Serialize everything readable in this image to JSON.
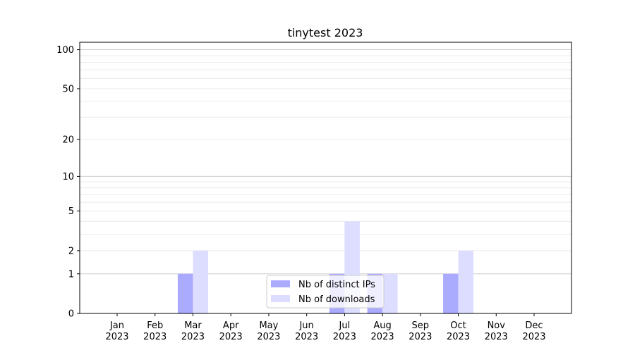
{
  "chart_data": {
    "type": "bar",
    "title": "tinytest 2023",
    "xlabel": "",
    "ylabel": "",
    "yscale": "log(1+y)",
    "ylim": [
      0,
      114
    ],
    "yticks": [
      0,
      1,
      2,
      5,
      10,
      20,
      50,
      100
    ],
    "ytick_labels": [
      "0",
      "1",
      "2",
      "5",
      "10",
      "20",
      "50",
      "100"
    ],
    "grid": "horizontal, major at 1/10/100, minor between",
    "legend_placement": "lower-center",
    "categories": [
      [
        "Jan",
        "2023"
      ],
      [
        "Feb",
        "2023"
      ],
      [
        "Mar",
        "2023"
      ],
      [
        "Apr",
        "2023"
      ],
      [
        "May",
        "2023"
      ],
      [
        "Jun",
        "2023"
      ],
      [
        "Jul",
        "2023"
      ],
      [
        "Aug",
        "2023"
      ],
      [
        "Sep",
        "2023"
      ],
      [
        "Oct",
        "2023"
      ],
      [
        "Nov",
        "2023"
      ],
      [
        "Dec",
        "2023"
      ]
    ],
    "series": [
      {
        "name": "Nb of distinct IPs",
        "color": "#aaaaff",
        "values": [
          0,
          0,
          1,
          0,
          0,
          0,
          1,
          1,
          0,
          1,
          0,
          0
        ]
      },
      {
        "name": "Nb of downloads",
        "color": "#ddddff",
        "values": [
          0,
          0,
          2,
          0,
          0,
          0,
          4,
          1,
          0,
          2,
          0,
          0
        ]
      }
    ]
  }
}
